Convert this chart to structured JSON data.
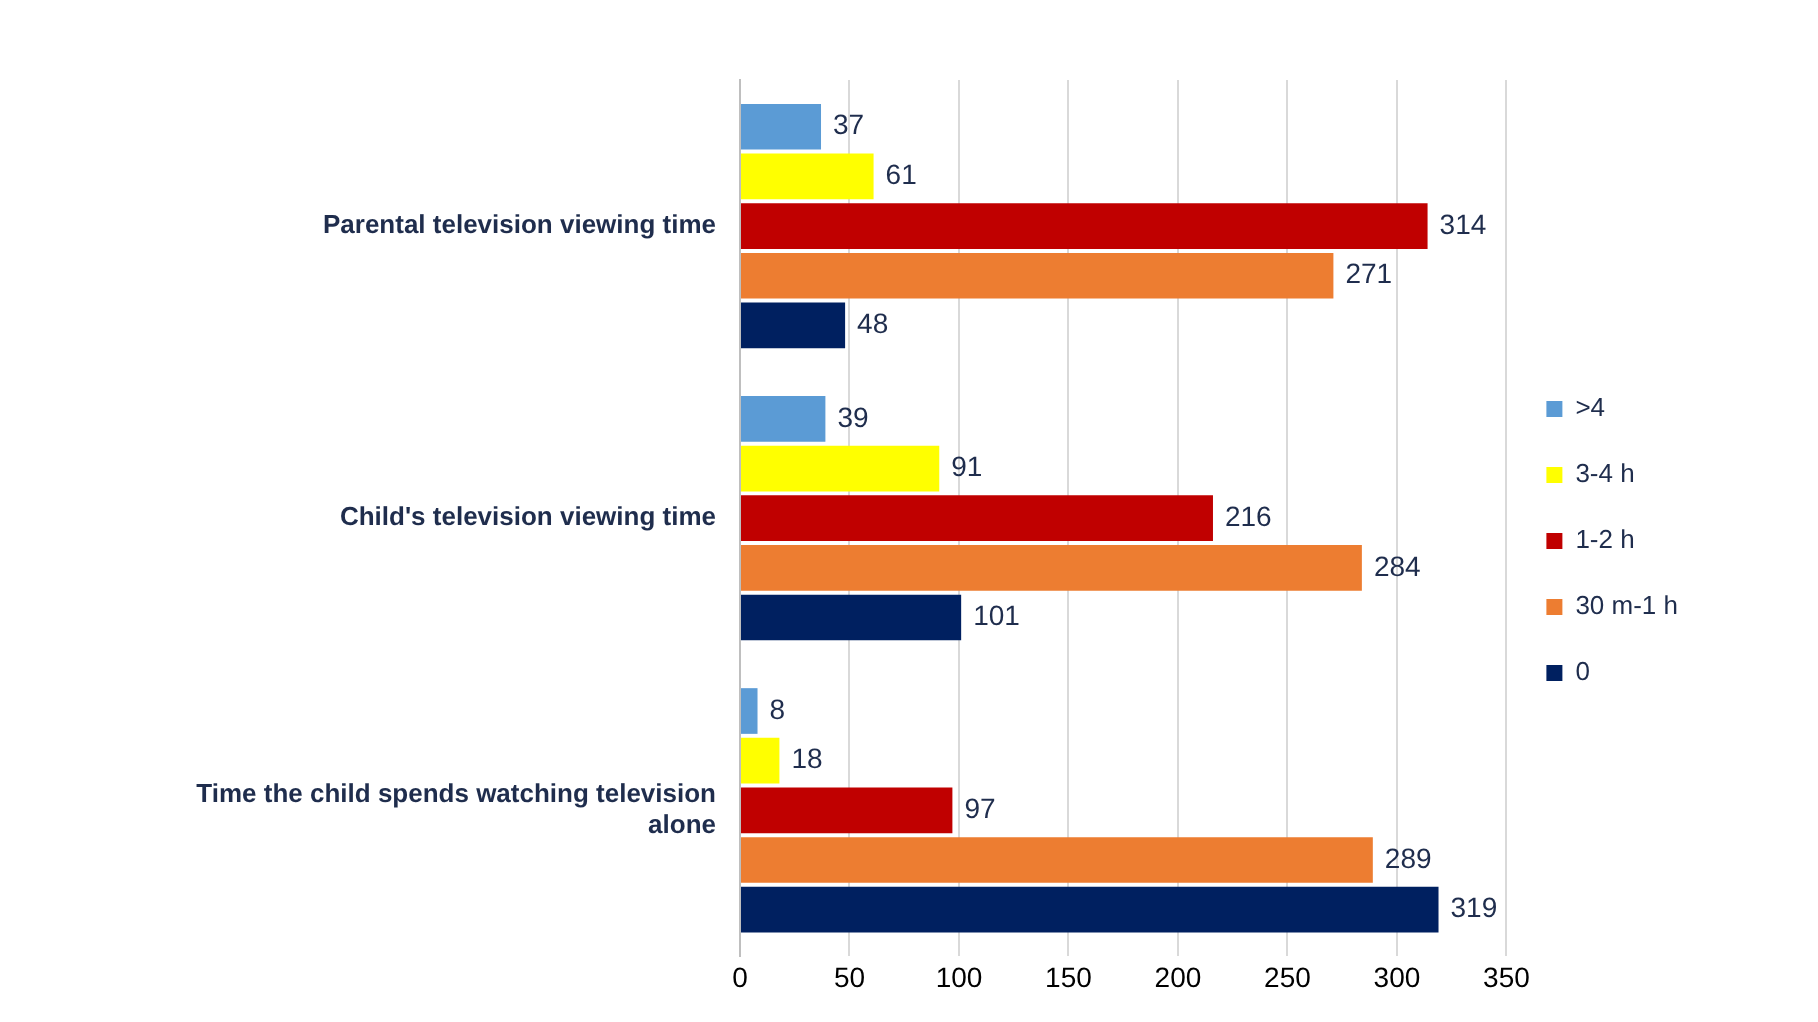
{
  "chart_data": {
    "type": "bar",
    "orientation": "horizontal",
    "categories": [
      "Parental television viewing time",
      "Child's television viewing time",
      "Time the child spends watching television alone"
    ],
    "series": [
      {
        "name": ">4",
        "color": "#5b9bd5",
        "values": [
          37,
          39,
          8
        ]
      },
      {
        "name": "3-4 h",
        "color": "#ffff00",
        "values": [
          61,
          91,
          18
        ]
      },
      {
        "name": "1-2 h",
        "color": "#c00000",
        "values": [
          314,
          216,
          97
        ]
      },
      {
        "name": "30 m-1 h",
        "color": "#ed7d31",
        "values": [
          271,
          284,
          289
        ]
      },
      {
        "name": "0",
        "color": "#002060",
        "values": [
          48,
          101,
          319
        ]
      }
    ],
    "xlim": [
      0,
      350
    ],
    "xticks": [
      0,
      50,
      100,
      150,
      200,
      250,
      300,
      350
    ],
    "grid": "x",
    "legend": "right",
    "data_labels": true
  }
}
